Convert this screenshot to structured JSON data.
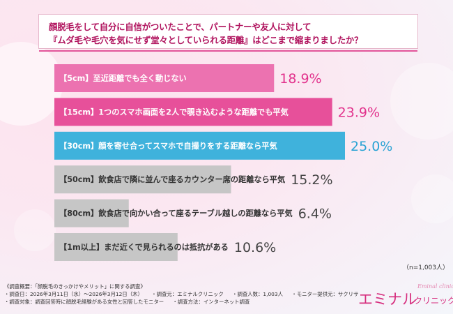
{
  "question": {
    "line1": "顔脱毛をして自分に自信がついたことで、パートナーや友人に対して",
    "line2": "『ムダ毛や毛穴を気にせず堂々としていられる距離』はどこまで縮まりましたか？"
  },
  "sample_note": "（n=1,003人）",
  "footer": {
    "title": "《調査概要：「顔脱毛のきっかけやメリット」に関する調査》",
    "period": "・調査日：2026年3月11日（水）〜2026年3月12日（木）",
    "source": "・調査元：エミナルクリニック",
    "people": "・調査人数：1,003人",
    "provider": "・モニター提供元：サクリサ",
    "target": "・調査対象：調査回答時に顔脱毛経験がある女性と回答したモニター",
    "method": "・調査方法：インターネット調査"
  },
  "logo": {
    "main": "エミナル",
    "sub": "クリニック",
    "script": "Eminal clinic"
  },
  "colors": {
    "magenta": "#e7509a",
    "pink": "#ec72b0",
    "blue": "#3fb2dc",
    "gray": "#c6c6c6",
    "value_magenta": "#e2338d",
    "value_blue": "#2aa3d4",
    "value_gray": "#444444"
  },
  "chart_data": {
    "type": "bar",
    "orientation": "horizontal",
    "unit": "%",
    "categories": [
      "【5cm】至近距離でも全く動じない",
      "【15cm】1つのスマホ画面を2人で覗き込むような距離でも平気",
      "【30cm】顔を寄せ合ってスマホで自撮りをする距離なら平気",
      "【50cm】飲食店で隣に並んで座るカウンター席の距離なら平気",
      "【80cm】飲食店で向かい合って座るテーブル越しの距離なら平気",
      "【1m以上】まだ近くで見られるのは抵抗がある"
    ],
    "values": [
      18.9,
      23.9,
      25.0,
      15.2,
      6.4,
      10.6
    ],
    "value_labels": [
      "18.9%",
      "23.9%",
      "25.0%",
      "15.2%",
      "6.4%",
      "10.6%"
    ],
    "bar_colors": [
      "pink",
      "magenta",
      "blue",
      "gray",
      "gray",
      "gray"
    ],
    "value_colors": [
      "value_magenta",
      "value_magenta",
      "value_blue",
      "value_gray",
      "value_gray",
      "value_gray"
    ],
    "label_colors": [
      "#ffffff",
      "#ffffff",
      "#ffffff",
      "#333333",
      "#333333",
      "#333333"
    ],
    "xlim": [
      0,
      25.0
    ],
    "grid": false,
    "legend": "none"
  }
}
